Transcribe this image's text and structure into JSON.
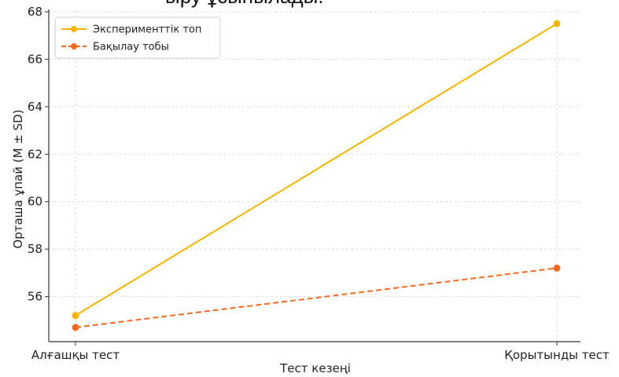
{
  "page": {
    "top_text": "ыру ұсынылады."
  },
  "chart_data": {
    "type": "line",
    "categories": [
      "Алғашқы тест",
      "Қорытынды тест"
    ],
    "series": [
      {
        "name": "Эксперименттік топ",
        "values": [
          55.2,
          67.5
        ],
        "color": "#f5b400",
        "dash": "solid"
      },
      {
        "name": "Бақылау тобы",
        "values": [
          54.7,
          57.2
        ],
        "color": "#f26b21",
        "dash": "dashed"
      }
    ],
    "xlabel": "Тест кезеңі",
    "ylabel": "Орташа ұпай (M ± SD)",
    "ylim": [
      54.1,
      68.1
    ],
    "yticks": [
      56,
      58,
      60,
      62,
      64,
      66,
      68
    ],
    "grid": true,
    "legend": "top-left"
  }
}
